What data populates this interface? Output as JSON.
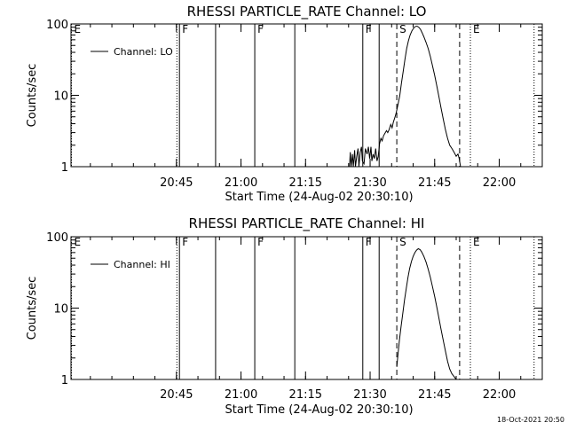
{
  "footer_timestamp": "18-Oct-2021 20:50",
  "chart_data": [
    {
      "type": "line",
      "title": "RHESSI PARTICLE_RATE Channel: LO",
      "xlabel": "Start Time (24-Aug-02 20:30:10)",
      "ylabel": "Counts/sec",
      "y_scale": "log",
      "ylim": [
        1,
        100
      ],
      "xlim_minutes": [
        20.5,
        130
      ],
      "x_ticks": [
        {
          "label": "20:45",
          "minute": 45
        },
        {
          "label": "21:00",
          "minute": 60
        },
        {
          "label": "21:15",
          "minute": 75
        },
        {
          "label": "21:30",
          "minute": 90
        },
        {
          "label": "21:45",
          "minute": 105
        },
        {
          "label": "22:00",
          "minute": 120
        }
      ],
      "y_ticks": [
        {
          "label": "1",
          "value": 1
        },
        {
          "label": "10",
          "value": 10
        },
        {
          "label": "100",
          "value": 100
        }
      ],
      "legend": "Channel: LO",
      "legend_position": "top-left",
      "markers": [
        {
          "minute": 20.6,
          "style": "dotted",
          "label": "E"
        },
        {
          "minute": 45.1,
          "style": "dotted",
          "label": ""
        },
        {
          "minute": 45.7,
          "style": "solid",
          "label": "F"
        },
        {
          "minute": 54.1,
          "style": "solid",
          "label": ""
        },
        {
          "minute": 63.2,
          "style": "solid",
          "label": "F"
        },
        {
          "minute": 72.5,
          "style": "solid",
          "label": ""
        },
        {
          "minute": 88.3,
          "style": "solid",
          "label": "F"
        },
        {
          "minute": 92.1,
          "style": "solid",
          "label": ""
        },
        {
          "minute": 96.2,
          "style": "dashed",
          "label": "S"
        },
        {
          "minute": 110.8,
          "style": "dashed",
          "label": ""
        },
        {
          "minute": 113.3,
          "style": "dotted",
          "label": "E"
        },
        {
          "minute": 128.1,
          "style": "dotted",
          "label": ""
        }
      ],
      "series": [
        {
          "values": [
            [
              85.2,
              1
            ],
            [
              85.4,
              1.6
            ],
            [
              85.6,
              1
            ],
            [
              85.9,
              1.5
            ],
            [
              86.1,
              1
            ],
            [
              86.4,
              1.7
            ],
            [
              86.6,
              1
            ],
            [
              86.9,
              1.4
            ],
            [
              87.2,
              1.8
            ],
            [
              87.4,
              1
            ],
            [
              87.7,
              1.6
            ],
            [
              88.0,
              1.9
            ],
            [
              88.2,
              1.2
            ],
            [
              88.6,
              1.1
            ],
            [
              88.9,
              1.8
            ],
            [
              89.3,
              1.5
            ],
            [
              89.6,
              1.9
            ],
            [
              89.9,
              1.3
            ],
            [
              90.2,
              1.9
            ],
            [
              90.4,
              1.2
            ],
            [
              90.7,
              1.5
            ],
            [
              91.0,
              1.3
            ],
            [
              91.3,
              1.8
            ],
            [
              91.6,
              1.2
            ],
            [
              91.9,
              1.4
            ],
            [
              92.2,
              2.1
            ],
            [
              92.5,
              2.5
            ],
            [
              92.8,
              2.3
            ],
            [
              93.1,
              2.7
            ],
            [
              93.4,
              2.9
            ],
            [
              93.8,
              3.2
            ],
            [
              94.1,
              3.0
            ],
            [
              94.4,
              3.3
            ],
            [
              94.8,
              3.9
            ],
            [
              95.1,
              3.5
            ],
            [
              95.4,
              4.2
            ],
            [
              95.8,
              5.0
            ],
            [
              96.1,
              5.8
            ],
            [
              96.5,
              7.5
            ],
            [
              96.9,
              10
            ],
            [
              97.3,
              15
            ],
            [
              97.7,
              22
            ],
            [
              98.1,
              32
            ],
            [
              98.5,
              45
            ],
            [
              98.9,
              58
            ],
            [
              99.3,
              70
            ],
            [
              99.7,
              80
            ],
            [
              100.1,
              87
            ],
            [
              100.5,
              92
            ],
            [
              100.9,
              93
            ],
            [
              101.3,
              90
            ],
            [
              101.7,
              84
            ],
            [
              102.1,
              75
            ],
            [
              102.5,
              66
            ],
            [
              103.0,
              55
            ],
            [
              103.5,
              45
            ],
            [
              104.0,
              35
            ],
            [
              104.5,
              26
            ],
            [
              105.0,
              19
            ],
            [
              105.5,
              13.5
            ],
            [
              106.0,
              9.5
            ],
            [
              106.5,
              6.6
            ],
            [
              107.0,
              4.6
            ],
            [
              107.5,
              3.3
            ],
            [
              108.0,
              2.5
            ],
            [
              108.5,
              2.0
            ],
            [
              109.0,
              1.8
            ],
            [
              109.5,
              1.6
            ],
            [
              110.0,
              1.4
            ],
            [
              110.4,
              1.5
            ],
            [
              110.7,
              1.3
            ],
            [
              111.0,
              1.0
            ]
          ]
        }
      ]
    },
    {
      "type": "line",
      "title": "RHESSI PARTICLE_RATE Channel: HI",
      "xlabel": "Start Time (24-Aug-02 20:30:10)",
      "ylabel": "Counts/sec",
      "y_scale": "log",
      "ylim": [
        1,
        100
      ],
      "xlim_minutes": [
        20.5,
        130
      ],
      "x_ticks": [
        {
          "label": "20:45",
          "minute": 45
        },
        {
          "label": "21:00",
          "minute": 60
        },
        {
          "label": "21:15",
          "minute": 75
        },
        {
          "label": "21:30",
          "minute": 90
        },
        {
          "label": "21:45",
          "minute": 105
        },
        {
          "label": "22:00",
          "minute": 120
        }
      ],
      "y_ticks": [
        {
          "label": "1",
          "value": 1
        },
        {
          "label": "10",
          "value": 10
        },
        {
          "label": "100",
          "value": 100
        }
      ],
      "legend": "Channel: HI",
      "legend_position": "top-left",
      "markers": [
        {
          "minute": 20.6,
          "style": "dotted",
          "label": "E"
        },
        {
          "minute": 45.1,
          "style": "dotted",
          "label": ""
        },
        {
          "minute": 45.7,
          "style": "solid",
          "label": "F"
        },
        {
          "minute": 54.1,
          "style": "solid",
          "label": ""
        },
        {
          "minute": 63.2,
          "style": "solid",
          "label": "F"
        },
        {
          "minute": 72.5,
          "style": "solid",
          "label": ""
        },
        {
          "minute": 88.3,
          "style": "solid",
          "label": "F"
        },
        {
          "minute": 92.1,
          "style": "solid",
          "label": ""
        },
        {
          "minute": 96.2,
          "style": "dashed",
          "label": "S"
        },
        {
          "minute": 110.8,
          "style": "dashed",
          "label": ""
        },
        {
          "minute": 113.3,
          "style": "dotted",
          "label": "E"
        },
        {
          "minute": 128.1,
          "style": "dotted",
          "label": ""
        }
      ],
      "series": [
        {
          "values": [
            [
              96.2,
              1.5
            ],
            [
              96.5,
              2.3
            ],
            [
              96.8,
              3.5
            ],
            [
              97.2,
              5.5
            ],
            [
              97.6,
              8.5
            ],
            [
              98.0,
              13
            ],
            [
              98.4,
              19
            ],
            [
              98.8,
              27
            ],
            [
              99.2,
              36
            ],
            [
              99.6,
              45
            ],
            [
              100.0,
              53
            ],
            [
              100.4,
              60
            ],
            [
              100.8,
              65
            ],
            [
              101.2,
              68
            ],
            [
              101.6,
              66
            ],
            [
              102.0,
              61
            ],
            [
              102.5,
              53
            ],
            [
              103.0,
              44
            ],
            [
              103.5,
              35
            ],
            [
              104.0,
              27
            ],
            [
              104.5,
              20
            ],
            [
              105.0,
              14.5
            ],
            [
              105.5,
              10.3
            ],
            [
              106.0,
              7.2
            ],
            [
              106.5,
              5.0
            ],
            [
              107.0,
              3.5
            ],
            [
              107.5,
              2.5
            ],
            [
              108.0,
              1.8
            ],
            [
              108.5,
              1.4
            ],
            [
              109.0,
              1.2
            ],
            [
              109.5,
              1.1
            ],
            [
              110.0,
              1.0
            ]
          ]
        }
      ]
    }
  ]
}
